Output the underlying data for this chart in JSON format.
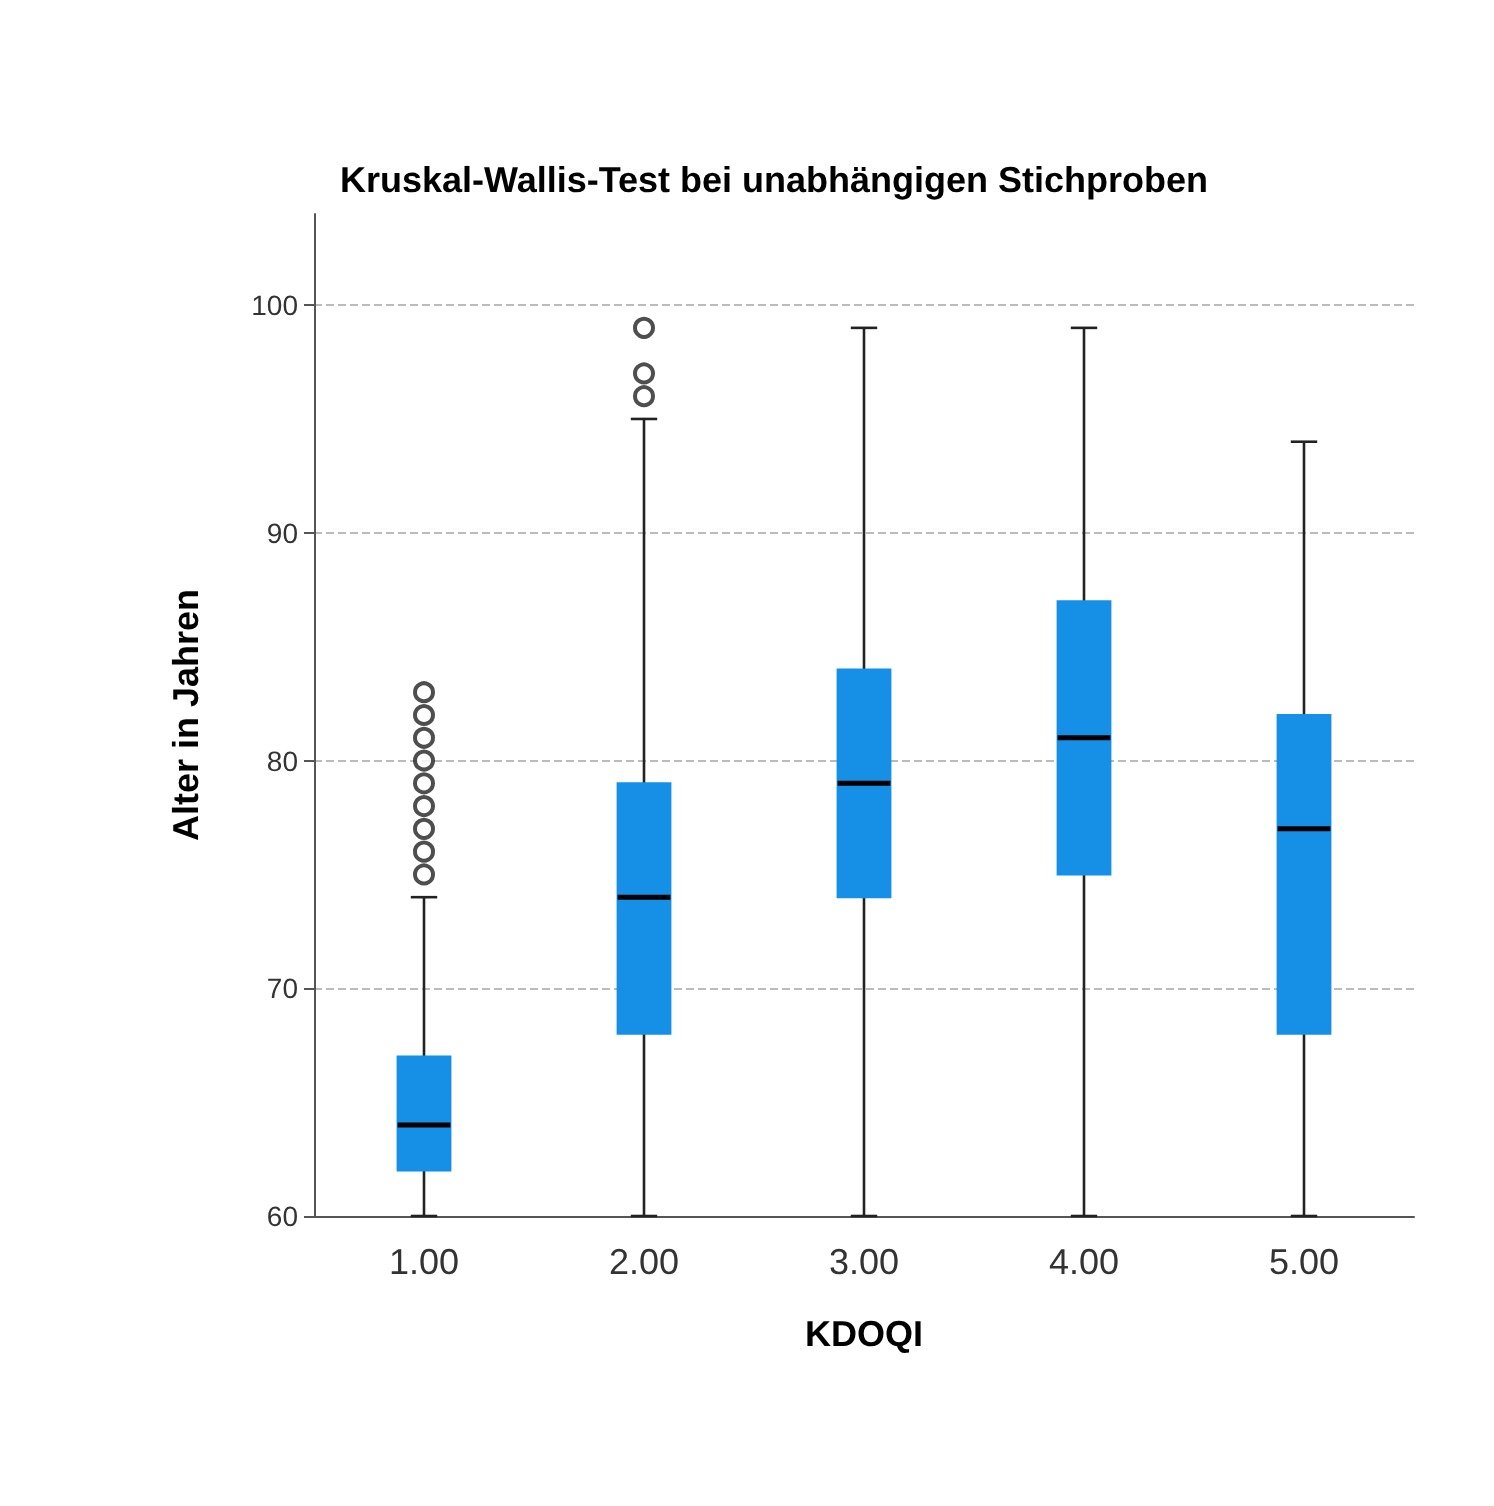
{
  "chart_data": {
    "type": "box",
    "title": "Kruskal-Wallis-Test bei unabhängigen Stichproben",
    "xlabel": "KDOQI",
    "ylabel": "Alter in Jahren",
    "categories": [
      "1.00",
      "2.00",
      "3.00",
      "4.00",
      "5.00"
    ],
    "series": [
      {
        "color": "#1590e6",
        "boxes": [
          {
            "low": 60,
            "q1": 62,
            "median": 64,
            "q3": 67,
            "high": 74,
            "outliers": [
              75,
              76,
              77,
              78,
              79,
              80,
              81,
              82,
              83
            ]
          },
          {
            "low": 60,
            "q1": 68,
            "median": 74,
            "q3": 79,
            "high": 95,
            "outliers": [
              96,
              97,
              99
            ]
          },
          {
            "low": 60,
            "q1": 74,
            "median": 79,
            "q3": 84,
            "high": 99
          },
          {
            "low": 60,
            "q1": 75,
            "median": 81,
            "q3": 87,
            "high": 99
          },
          {
            "low": 60,
            "q1": 68,
            "median": 77,
            "q3": 82,
            "high": 94
          }
        ]
      }
    ],
    "ylim": [
      60,
      104
    ],
    "yticks": [
      60,
      70,
      80,
      90,
      100
    ],
    "grid": "y"
  }
}
